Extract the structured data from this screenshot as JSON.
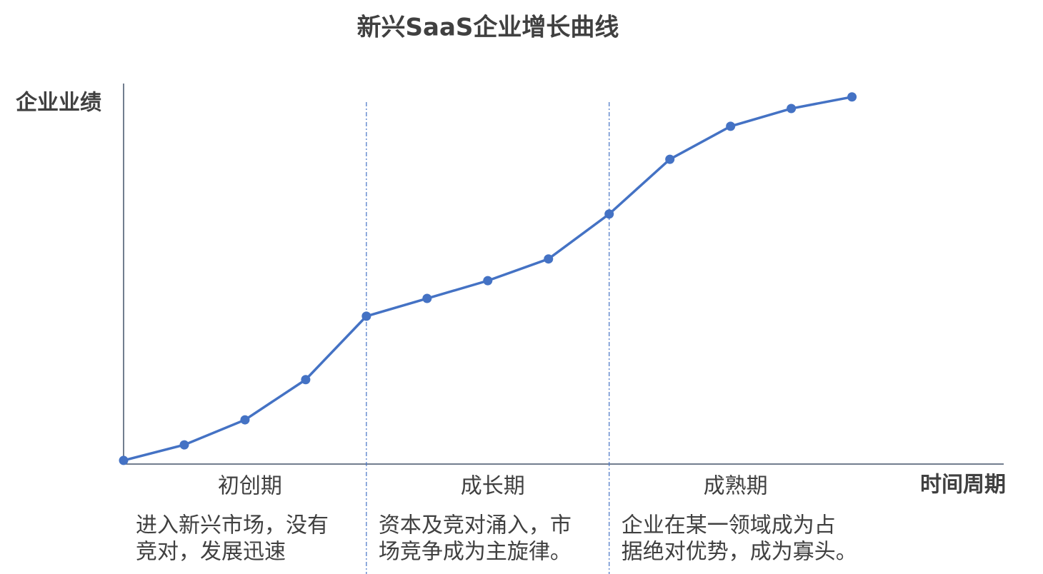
{
  "chart_data": {
    "type": "line",
    "title": "新兴SaaS企业增长曲线",
    "y_label": "企业业绩",
    "x_label": "时间周期",
    "x": [
      0,
      1,
      2,
      3,
      4,
      5,
      6,
      7,
      8,
      9,
      10,
      11,
      12
    ],
    "series": [
      {
        "color": "#4472c4",
        "values": [
          0,
          4.3,
          11.2,
          22.3,
          39.8,
          44.7,
          49.6,
          55.6,
          68,
          83.1,
          92.2,
          97.1,
          100.3
        ]
      }
    ],
    "xlim": [
      0,
      14.5
    ],
    "ylim": [
      -1,
      104
    ],
    "dividers": [
      4,
      8
    ],
    "phases": [
      {
        "name": "初创期",
        "description": [
          "进入新兴市场，没有",
          "竞对，发展迅速"
        ]
      },
      {
        "name": "成长期",
        "description": [
          "资本及竞对涌入，市",
          "场竞争成为主旋律。"
        ]
      },
      {
        "name": "成熟期",
        "description": [
          "企业在某一领域成为占",
          "据绝对优势，成为寡头。"
        ]
      }
    ]
  }
}
